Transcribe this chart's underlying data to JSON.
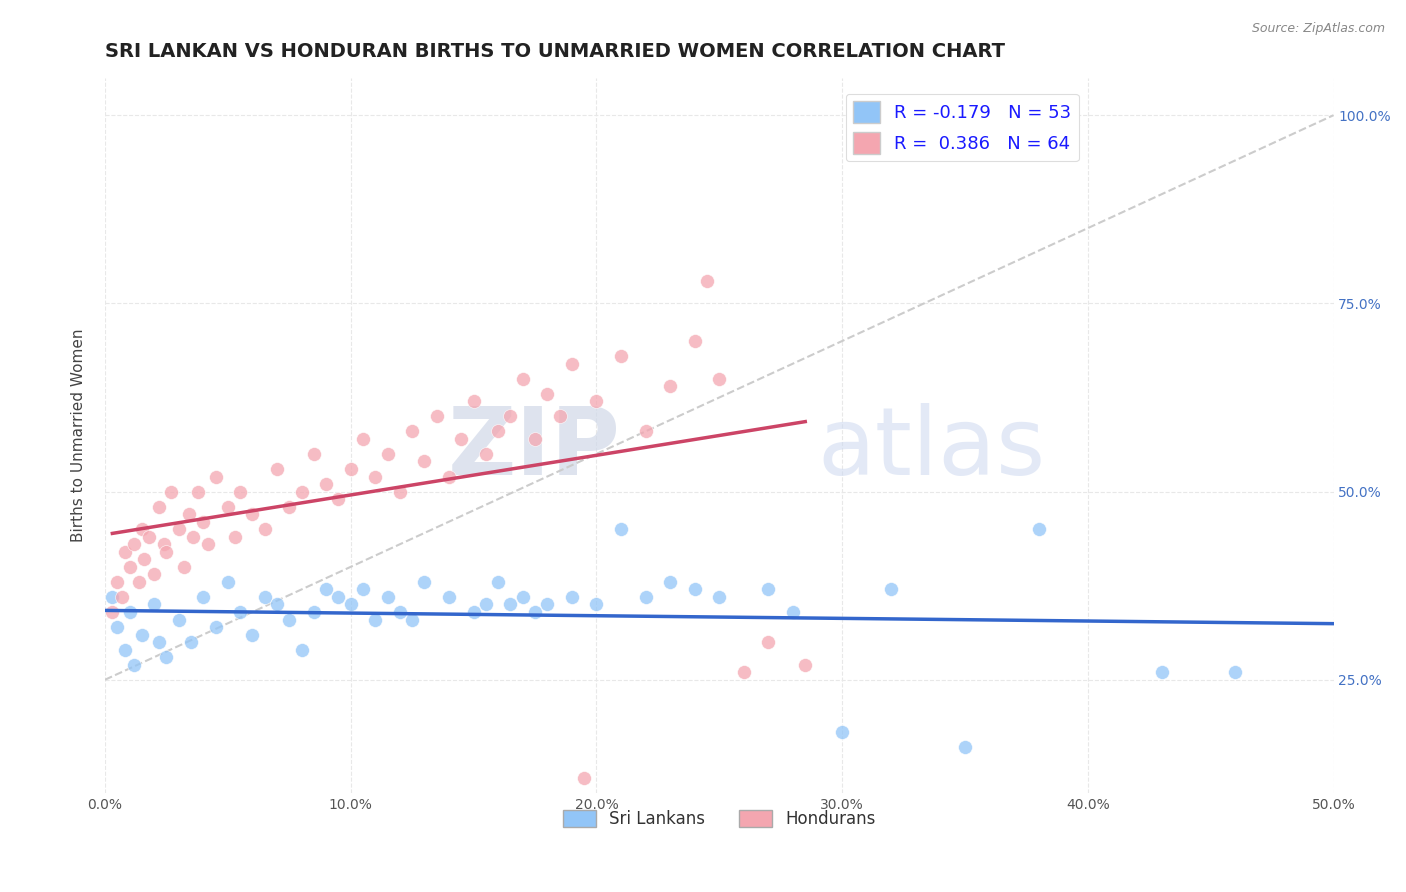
{
  "title": "SRI LANKAN VS HONDURAN BIRTHS TO UNMARRIED WOMEN CORRELATION CHART",
  "source": "Source: ZipAtlas.com",
  "xlabel_vals": [
    0,
    10,
    20,
    30,
    40,
    50
  ],
  "ylabel_vals_right": [
    25,
    50,
    75,
    100
  ],
  "ylabel_label": "Births to Unmarried Women",
  "xlim": [
    0,
    50
  ],
  "ylim": [
    10,
    105
  ],
  "sri_lankan_color": "#92c5f7",
  "honduran_color": "#f4a6b0",
  "sri_lankan_R": -0.179,
  "sri_lankan_N": 53,
  "honduran_R": 0.386,
  "honduran_N": 64,
  "legend_label_sri": "Sri Lankans",
  "legend_label_hon": "Hondurans",
  "sri_lankans": [
    [
      0.3,
      36
    ],
    [
      0.5,
      32
    ],
    [
      0.8,
      29
    ],
    [
      1.0,
      34
    ],
    [
      1.2,
      27
    ],
    [
      1.5,
      31
    ],
    [
      2.0,
      35
    ],
    [
      2.2,
      30
    ],
    [
      2.5,
      28
    ],
    [
      3.0,
      33
    ],
    [
      3.5,
      30
    ],
    [
      4.0,
      36
    ],
    [
      4.5,
      32
    ],
    [
      5.0,
      38
    ],
    [
      5.5,
      34
    ],
    [
      6.0,
      31
    ],
    [
      6.5,
      36
    ],
    [
      7.0,
      35
    ],
    [
      7.5,
      33
    ],
    [
      8.0,
      29
    ],
    [
      8.5,
      34
    ],
    [
      9.0,
      37
    ],
    [
      9.5,
      36
    ],
    [
      10.0,
      35
    ],
    [
      10.5,
      37
    ],
    [
      11.0,
      33
    ],
    [
      11.5,
      36
    ],
    [
      12.0,
      34
    ],
    [
      12.5,
      33
    ],
    [
      13.0,
      38
    ],
    [
      14.0,
      36
    ],
    [
      15.0,
      34
    ],
    [
      15.5,
      35
    ],
    [
      16.0,
      38
    ],
    [
      16.5,
      35
    ],
    [
      17.0,
      36
    ],
    [
      17.5,
      34
    ],
    [
      18.0,
      35
    ],
    [
      19.0,
      36
    ],
    [
      20.0,
      35
    ],
    [
      21.0,
      45
    ],
    [
      22.0,
      36
    ],
    [
      23.0,
      38
    ],
    [
      24.0,
      37
    ],
    [
      25.0,
      36
    ],
    [
      27.0,
      37
    ],
    [
      28.0,
      34
    ],
    [
      30.0,
      18
    ],
    [
      32.0,
      37
    ],
    [
      35.0,
      16
    ],
    [
      38.0,
      45
    ],
    [
      43.0,
      26
    ],
    [
      46.0,
      26
    ]
  ],
  "hondurans": [
    [
      0.3,
      34
    ],
    [
      0.5,
      38
    ],
    [
      0.7,
      36
    ],
    [
      0.8,
      42
    ],
    [
      1.0,
      40
    ],
    [
      1.2,
      43
    ],
    [
      1.4,
      38
    ],
    [
      1.5,
      45
    ],
    [
      1.6,
      41
    ],
    [
      1.8,
      44
    ],
    [
      2.0,
      39
    ],
    [
      2.2,
      48
    ],
    [
      2.4,
      43
    ],
    [
      2.5,
      42
    ],
    [
      2.7,
      50
    ],
    [
      3.0,
      45
    ],
    [
      3.2,
      40
    ],
    [
      3.4,
      47
    ],
    [
      3.6,
      44
    ],
    [
      3.8,
      50
    ],
    [
      4.0,
      46
    ],
    [
      4.2,
      43
    ],
    [
      4.5,
      52
    ],
    [
      5.0,
      48
    ],
    [
      5.3,
      44
    ],
    [
      5.5,
      50
    ],
    [
      6.0,
      47
    ],
    [
      6.5,
      45
    ],
    [
      7.0,
      53
    ],
    [
      7.5,
      48
    ],
    [
      8.0,
      50
    ],
    [
      8.5,
      55
    ],
    [
      9.0,
      51
    ],
    [
      9.5,
      49
    ],
    [
      10.0,
      53
    ],
    [
      10.5,
      57
    ],
    [
      11.0,
      52
    ],
    [
      11.5,
      55
    ],
    [
      12.0,
      50
    ],
    [
      12.5,
      58
    ],
    [
      13.0,
      54
    ],
    [
      13.5,
      60
    ],
    [
      14.0,
      52
    ],
    [
      14.5,
      57
    ],
    [
      15.0,
      62
    ],
    [
      15.5,
      55
    ],
    [
      16.0,
      58
    ],
    [
      16.5,
      60
    ],
    [
      17.0,
      65
    ],
    [
      17.5,
      57
    ],
    [
      18.0,
      63
    ],
    [
      18.5,
      60
    ],
    [
      19.0,
      67
    ],
    [
      19.5,
      12
    ],
    [
      20.0,
      62
    ],
    [
      21.0,
      68
    ],
    [
      22.0,
      58
    ],
    [
      23.0,
      64
    ],
    [
      24.0,
      70
    ],
    [
      24.5,
      78
    ],
    [
      25.0,
      65
    ],
    [
      26.0,
      26
    ],
    [
      27.0,
      30
    ],
    [
      28.5,
      27
    ]
  ],
  "background_color": "#ffffff",
  "grid_color": "#e8e8e8",
  "title_fontsize": 14,
  "axis_label_fontsize": 11,
  "tick_fontsize": 10,
  "watermark_zip": "ZIP",
  "watermark_atlas": "atlas",
  "ref_line_color": "#cccccc",
  "sri_line_color": "#3366cc",
  "hon_line_color": "#cc4466"
}
